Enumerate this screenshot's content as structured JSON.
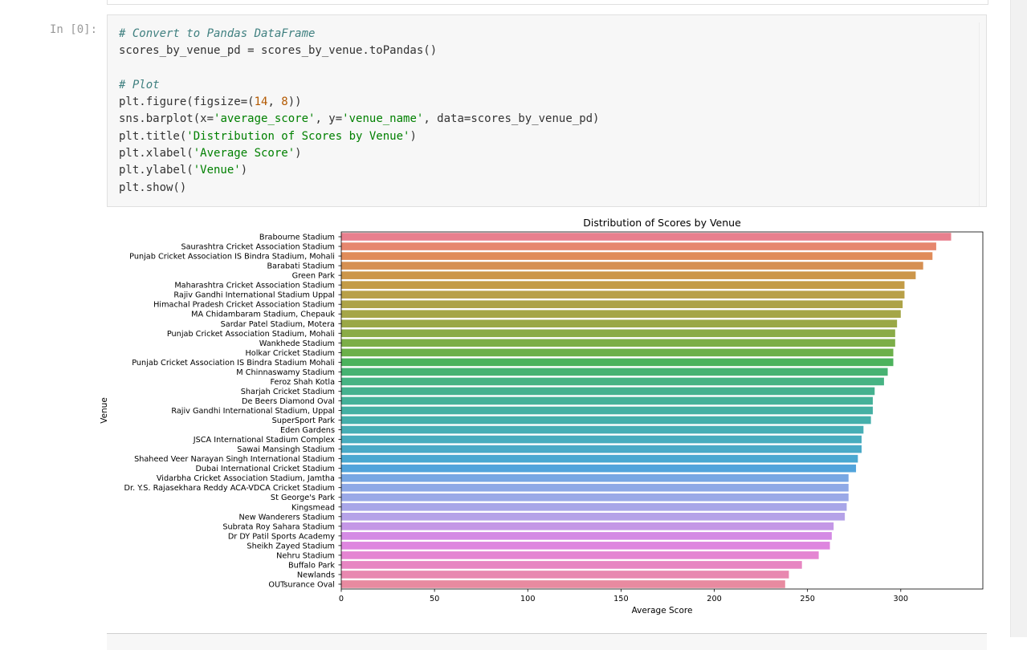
{
  "prompt": "In [0]:",
  "code_lines": [
    [
      {
        "t": "# Convert to Pandas DataFrame",
        "c": "comment"
      }
    ],
    [
      {
        "t": "scores_by_venue_pd = scores_by_venue.toPandas()",
        "c": ""
      }
    ],
    [
      {
        "t": "",
        "c": ""
      }
    ],
    [
      {
        "t": "# Plot",
        "c": "comment"
      }
    ],
    [
      {
        "t": "plt.figure(figsize=(",
        "c": ""
      },
      {
        "t": "14",
        "c": "num"
      },
      {
        "t": ", ",
        "c": ""
      },
      {
        "t": "8",
        "c": "num"
      },
      {
        "t": "))",
        "c": ""
      }
    ],
    [
      {
        "t": "sns.barplot(x=",
        "c": ""
      },
      {
        "t": "'average_score'",
        "c": "str"
      },
      {
        "t": ", y=",
        "c": ""
      },
      {
        "t": "'venue_name'",
        "c": "str"
      },
      {
        "t": ", data=scores_by_venue_pd)",
        "c": ""
      }
    ],
    [
      {
        "t": "plt.title(",
        "c": ""
      },
      {
        "t": "'Distribution of Scores by Venue'",
        "c": "str"
      },
      {
        "t": ")",
        "c": ""
      }
    ],
    [
      {
        "t": "plt.xlabel(",
        "c": ""
      },
      {
        "t": "'Average Score'",
        "c": "str"
      },
      {
        "t": ")",
        "c": ""
      }
    ],
    [
      {
        "t": "plt.ylabel(",
        "c": ""
      },
      {
        "t": "'Venue'",
        "c": "str"
      },
      {
        "t": ")",
        "c": ""
      }
    ],
    [
      {
        "t": "plt.show()",
        "c": ""
      }
    ]
  ],
  "chart_data": {
    "type": "bar",
    "orientation": "horizontal",
    "title": "Distribution of Scores by Venue",
    "xlabel": "Average Score",
    "ylabel": "Venue",
    "xlim": [
      0,
      344
    ],
    "xticks": [
      0,
      50,
      100,
      150,
      200,
      250,
      300
    ],
    "grid": false,
    "categories": [
      "Brabourne Stadium",
      "Saurashtra Cricket Association Stadium",
      "Punjab Cricket Association IS Bindra Stadium, Mohali",
      "Barabati Stadium",
      "Green Park",
      "Maharashtra Cricket Association Stadium",
      "Rajiv Gandhi International Stadium Uppal",
      "Himachal Pradesh Cricket Association Stadium",
      "MA Chidambaram Stadium, Chepauk",
      "Sardar Patel Stadium, Motera",
      "Punjab Cricket Association Stadium, Mohali",
      "Wankhede Stadium",
      "Holkar Cricket Stadium",
      "Punjab Cricket Association IS Bindra Stadium Mohali",
      "M Chinnaswamy Stadium",
      "Feroz Shah Kotla",
      "Sharjah Cricket Stadium",
      "De Beers Diamond Oval",
      "Rajiv Gandhi International Stadium, Uppal",
      "SuperSport Park",
      "Eden Gardens",
      "JSCA International Stadium Complex",
      "Sawai Mansingh Stadium",
      "Shaheed Veer Narayan Singh International Stadium",
      "Dubai International Cricket Stadium",
      "Vidarbha Cricket Association Stadium, Jamtha",
      "Dr. Y.S. Rajasekhara Reddy ACA-VDCA Cricket Stadium",
      "St George's Park",
      "Kingsmead",
      "New Wanderers Stadium",
      "Subrata Roy Sahara Stadium",
      "Dr DY Patil Sports Academy",
      "Sheikh Zayed Stadium",
      "Nehru Stadium",
      "Buffalo Park",
      "Newlands",
      "OUTsurance Oval"
    ],
    "values": [
      327,
      319,
      317,
      312,
      308,
      302,
      302,
      301,
      300,
      298,
      297,
      297,
      296,
      296,
      293,
      291,
      286,
      285,
      285,
      284,
      280,
      279,
      279,
      277,
      276,
      272,
      272,
      272,
      271,
      270,
      264,
      263,
      262,
      256,
      247,
      240,
      238
    ],
    "colors": [
      "#e8808e",
      "#e6876e",
      "#e08c5a",
      "#d69052",
      "#cc964a",
      "#c39c47",
      "#b8a048",
      "#ada347",
      "#a5a648",
      "#9aa846",
      "#8aab47",
      "#7cae48",
      "#6cb04a",
      "#4cb25c",
      "#47b272",
      "#46b383",
      "#45b18f",
      "#45b199",
      "#45b0a3",
      "#45afab",
      "#47aeb5",
      "#48acbe",
      "#4aaac7",
      "#4aa8d1",
      "#52a4db",
      "#78a7e3",
      "#8ea9e6",
      "#9aa9e7",
      "#a8a6e8",
      "#b5a2e8",
      "#c497e6",
      "#d48be4",
      "#de86df",
      "#e485d2",
      "#e786c2",
      "#e888b0",
      "#e88aa0"
    ]
  }
}
